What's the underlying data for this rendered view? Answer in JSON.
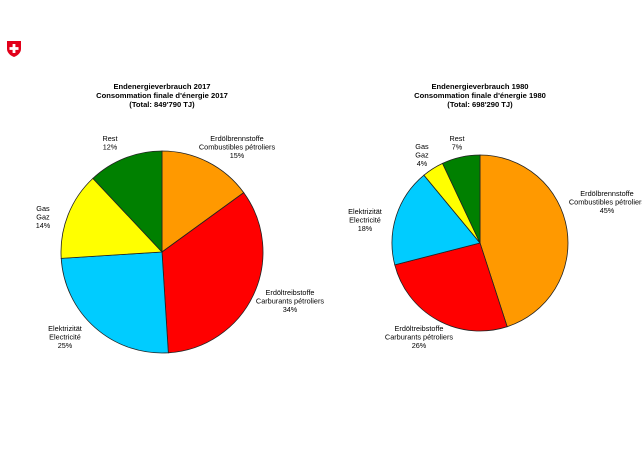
{
  "logo": {
    "name": "swiss-cross",
    "color": "#e2001a"
  },
  "colors": {
    "orange": "#ff9900",
    "red": "#ff0000",
    "blue": "#00ccff",
    "yellow": "#ffff00",
    "green": "#008000"
  },
  "chart_data": [
    {
      "type": "pie",
      "title": [
        "Endenergieverbrauch 2017",
        "Consommation finale d'énergie 2017",
        "(Total: 849'790 TJ)"
      ],
      "slices": [
        {
          "label": [
            "Erdölbrennstoffe",
            "Combustibles pétroliers"
          ],
          "pct": "15%",
          "value": 15,
          "color": "#ff9900"
        },
        {
          "label": [
            "Erdöltreibstoffe",
            "Carburants pétroliers"
          ],
          "pct": "34%",
          "value": 34,
          "color": "#ff0000"
        },
        {
          "label": [
            "Elektrizität",
            "Electricité"
          ],
          "pct": "25%",
          "value": 25,
          "color": "#00ccff"
        },
        {
          "label": [
            "Gas",
            "Gaz"
          ],
          "pct": "14%",
          "value": 14,
          "color": "#ffff00"
        },
        {
          "label": [
            "Rest"
          ],
          "pct": "12%",
          "value": 12,
          "color": "#008000"
        }
      ]
    },
    {
      "type": "pie",
      "title": [
        "Endenergieverbrauch 1980",
        "Consommation finale d'énergie 1980",
        "(Total: 698'290 TJ)"
      ],
      "slices": [
        {
          "label": [
            "Erdölbrennstoffe",
            "Combustibles pétroliers"
          ],
          "pct": "45%",
          "value": 45,
          "color": "#ff9900"
        },
        {
          "label": [
            "Erdöltreibstoffe",
            "Carburants pétroliers"
          ],
          "pct": "26%",
          "value": 26,
          "color": "#ff0000"
        },
        {
          "label": [
            "Elektrizität",
            "Electricité"
          ],
          "pct": "18%",
          "value": 18,
          "color": "#00ccff"
        },
        {
          "label": [
            "Gas",
            "Gaz"
          ],
          "pct": "4%",
          "value": 4,
          "color": "#ffff00"
        },
        {
          "label": [
            "Rest"
          ],
          "pct": "7%",
          "value": 7,
          "color": "#008000"
        }
      ]
    }
  ]
}
